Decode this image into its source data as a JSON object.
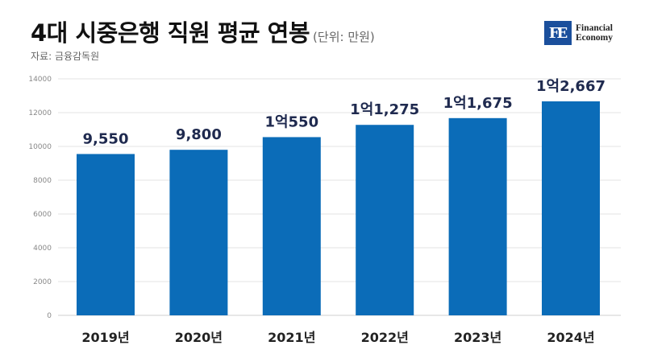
{
  "header": {
    "title": "4대 시중은행 직원 평균 연봉",
    "unit": "(단위: 만원)",
    "source": "자료: 금융감독원"
  },
  "logo": {
    "mark": "FE",
    "line1": "Financial",
    "line2": "Economy",
    "color": "#1b4f9c"
  },
  "chart_data": {
    "type": "bar",
    "categories": [
      "2019년",
      "2020년",
      "2021년",
      "2022년",
      "2023년",
      "2024년"
    ],
    "values": [
      9550,
      9800,
      10550,
      11275,
      11675,
      12667
    ],
    "data_labels": [
      "9,550",
      "9,800",
      "1억550",
      "1억1,275",
      "1억1,675",
      "1억2,667"
    ],
    "ylim": [
      0,
      14000
    ],
    "yticks": [
      0,
      2000,
      4000,
      6000,
      8000,
      10000,
      12000,
      14000
    ],
    "grid": true,
    "bar_color": "#0b6cb8"
  }
}
